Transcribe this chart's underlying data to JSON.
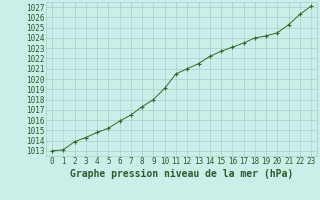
{
  "x": [
    0,
    1,
    2,
    3,
    4,
    5,
    6,
    7,
    8,
    9,
    10,
    11,
    12,
    13,
    14,
    15,
    16,
    17,
    18,
    19,
    20,
    21,
    22,
    23
  ],
  "y": [
    1013.0,
    1013.1,
    1013.9,
    1014.3,
    1014.8,
    1015.2,
    1015.9,
    1016.5,
    1017.3,
    1018.0,
    1019.1,
    1020.5,
    1021.0,
    1021.5,
    1022.2,
    1022.7,
    1023.1,
    1023.5,
    1024.0,
    1024.2,
    1024.5,
    1025.3,
    1026.3,
    1027.1
  ],
  "line_color": "#2d6a2d",
  "marker": "+",
  "background_color": "#cceee8",
  "grid_color": "#aacccc",
  "xlabel": "Graphe pression niveau de la mer (hPa)",
  "xlabel_fontsize": 7,
  "ytick_min": 1013,
  "ytick_max": 1027,
  "xtick_labels": [
    "0",
    "1",
    "2",
    "3",
    "4",
    "5",
    "6",
    "7",
    "8",
    "9",
    "10",
    "11",
    "12",
    "13",
    "14",
    "15",
    "16",
    "17",
    "18",
    "19",
    "20",
    "21",
    "22",
    "23"
  ],
  "axis_label_color": "#2d5a2d",
  "tick_fontsize": 5.5,
  "ylim": [
    1012.5,
    1027.5
  ],
  "xlim": [
    -0.5,
    23.5
  ]
}
